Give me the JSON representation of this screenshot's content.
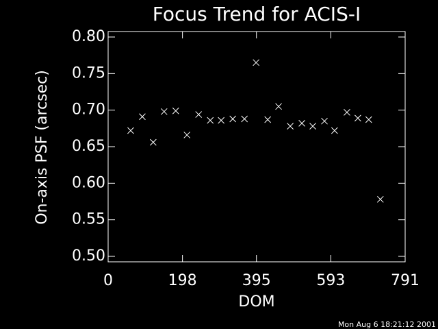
{
  "chart_data": {
    "type": "scatter",
    "title": "Focus Trend for ACIS-I",
    "x_label": "DOM",
    "y_label": "On-axis PSF (arcsec)",
    "footer": "Mon Aug  6 18:21:12 2001",
    "marker": "x",
    "color": "#ffffff",
    "xlim": [
      0,
      791
    ],
    "xticks": [
      0,
      198,
      395,
      593,
      791
    ],
    "ylim": [
      0.5,
      0.8
    ],
    "yticks": [
      {
        "value": 0.5,
        "label": "0.50"
      },
      {
        "value": 0.55,
        "label": "0.55"
      },
      {
        "value": 0.6,
        "label": "0.60"
      },
      {
        "value": 0.65,
        "label": "0.65"
      },
      {
        "value": 0.7,
        "label": "0.70"
      },
      {
        "value": 0.75,
        "label": "0.75"
      },
      {
        "value": 0.8,
        "label": "0.80"
      }
    ],
    "x": [
      60,
      91,
      120,
      149,
      180,
      210,
      241,
      272,
      301,
      332,
      363,
      394,
      425,
      454,
      485,
      516,
      545,
      576,
      603,
      636,
      665,
      694,
      725
    ],
    "values": [
      0.672,
      0.691,
      0.656,
      0.698,
      0.699,
      0.666,
      0.694,
      0.686,
      0.686,
      0.688,
      0.688,
      0.765,
      0.687,
      0.705,
      0.678,
      0.682,
      0.678,
      0.685,
      0.672,
      0.697,
      0.689,
      0.687,
      0.578
    ]
  }
}
